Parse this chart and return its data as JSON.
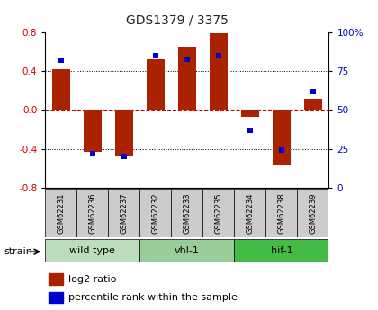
{
  "title": "GDS1379 / 3375",
  "samples": [
    "GSM62231",
    "GSM62236",
    "GSM62237",
    "GSM62232",
    "GSM62233",
    "GSM62235",
    "GSM62234",
    "GSM62238",
    "GSM62239"
  ],
  "log2_ratio": [
    0.42,
    -0.43,
    -0.48,
    0.52,
    0.65,
    0.79,
    -0.07,
    -0.57,
    0.12
  ],
  "percentile_rank": [
    82,
    22,
    20,
    85,
    83,
    85,
    37,
    24,
    62
  ],
  "groups": [
    {
      "label": "wild type",
      "start": 0,
      "end": 3,
      "color": "#bbddbb"
    },
    {
      "label": "vhl-1",
      "start": 3,
      "end": 6,
      "color": "#99cc99"
    },
    {
      "label": "hif-1",
      "start": 6,
      "end": 9,
      "color": "#44bb44"
    }
  ],
  "ylim": [
    -0.8,
    0.8
  ],
  "yticks_left": [
    -0.8,
    -0.4,
    0.0,
    0.4,
    0.8
  ],
  "yticks_right": [
    0,
    25,
    50,
    75,
    100
  ],
  "bar_color": "#aa2200",
  "dot_color": "#0000cc",
  "zero_line_color": "#cc0000",
  "grid_color": "#000000",
  "bar_width": 0.55,
  "dot_size": 25
}
